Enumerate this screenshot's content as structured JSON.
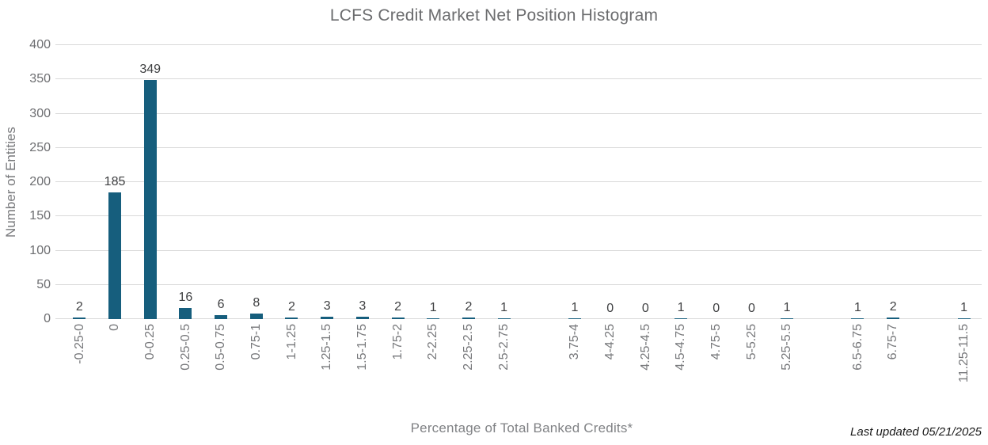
{
  "chart_data": {
    "type": "bar",
    "title": "LCFS Credit Market Net Position Histogram",
    "xlabel": "Percentage of Total Banked Credits*",
    "ylabel": "Number of Entities",
    "ylim": [
      0,
      400
    ],
    "yticks": [
      0,
      50,
      100,
      150,
      200,
      250,
      300,
      350,
      400
    ],
    "grid": true,
    "legend": false,
    "bar_color": "#165e7d",
    "categories": [
      "-0.25-0",
      "0",
      "0-0.25",
      "0.25-0.5",
      "0.5-0.75",
      "0.75-1",
      "1-1.25",
      "1.25-1.5",
      "1.5-1.75",
      "1.75-2",
      "2-2.25",
      "2.25-2.5",
      "2.5-2.75",
      "",
      "3.75-4",
      "4-4.25",
      "4.25-4.5",
      "4.5-4.75",
      "4.75-5",
      "5-5.25",
      "5.25-5.5",
      "",
      "6.5-6.75",
      "6.75-7",
      "",
      "11.25-11.5"
    ],
    "values": [
      2,
      185,
      349,
      16,
      6,
      8,
      2,
      3,
      3,
      2,
      1,
      2,
      1,
      null,
      1,
      0,
      0,
      1,
      0,
      0,
      1,
      null,
      1,
      2,
      null,
      1
    ]
  },
  "footer": {
    "last_updated": "Last updated 05/21/2025"
  },
  "colors": {
    "bar": "#165e7d",
    "gridline": "#d9d9d9",
    "title_text": "#6b6c6e",
    "tick_text": "#6d6e71",
    "axis_title_text": "#808285",
    "value_text": "#3f4042",
    "footnote_text": "#1a1a1a"
  }
}
